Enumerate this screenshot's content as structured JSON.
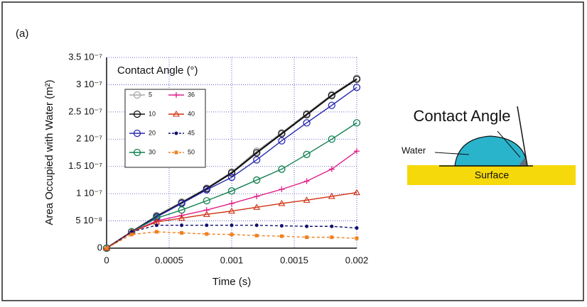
{
  "panel_label": "(a)",
  "diagram": {
    "title": "Contact Angle",
    "water": "Water",
    "surface": "Surface"
  },
  "chart_data": {
    "type": "line",
    "x_label": "Time (s)",
    "y_label": "Area Occupied with Water (m²)",
    "legend_title": "Contact Angle (°)",
    "x": [
      0,
      0.0002,
      0.0004,
      0.0006,
      0.0008,
      0.001,
      0.0012,
      0.0014,
      0.0016,
      0.0018,
      0.002
    ],
    "xlim": [
      0,
      0.002
    ],
    "xticks": [
      0,
      0.0005,
      0.001,
      0.0015,
      0.002
    ],
    "ylim": [
      0,
      3.5e-07
    ],
    "yticks": [
      0,
      {
        "value": 5e-08,
        "label": "5 10⁻⁸"
      },
      {
        "value": 1e-07,
        "label": "1 10⁻⁷"
      },
      {
        "value": 1.5e-07,
        "label": "1.5 10⁻⁷"
      },
      {
        "value": 2e-07,
        "label": "2 10⁻⁷"
      },
      {
        "value": 2.5e-07,
        "label": "2.5 10⁻⁷"
      },
      {
        "value": 3e-07,
        "label": "3 10⁻⁷"
      },
      {
        "value": 3.5e-07,
        "label": "3.5 10⁻⁷"
      }
    ],
    "grid": true,
    "series": [
      {
        "name": "5",
        "color": "#a8a8a8",
        "marker": "open-circle",
        "dashed": false,
        "values": [
          0,
          3e-08,
          6e-08,
          8.5e-08,
          1.1e-07,
          1.4e-07,
          1.78e-07,
          2.12e-07,
          2.47e-07,
          2.82e-07,
          3.12e-07
        ]
      },
      {
        "name": "10",
        "color": "#111111",
        "marker": "open-circle",
        "dashed": false,
        "values": [
          0,
          3e-08,
          5.8e-08,
          8.3e-08,
          1.09e-07,
          1.38e-07,
          1.75e-07,
          2.1e-07,
          2.45e-07,
          2.8e-07,
          3.1e-07
        ]
      },
      {
        "name": "20",
        "color": "#2828b0",
        "marker": "open-circle",
        "dashed": false,
        "values": [
          0,
          3e-08,
          5.7e-08,
          8.2e-08,
          1.07e-07,
          1.3e-07,
          1.62e-07,
          1.97e-07,
          2.3e-07,
          2.62e-07,
          2.95e-07
        ]
      },
      {
        "name": "30",
        "color": "#108050",
        "marker": "open-circle",
        "dashed": false,
        "values": [
          0,
          3e-08,
          5.5e-08,
          7e-08,
          8.7e-08,
          1.05e-07,
          1.25e-07,
          1.45e-07,
          1.72e-07,
          2e-07,
          2.3e-07
        ]
      },
      {
        "name": "36",
        "color": "#e0208a",
        "marker": "plus",
        "dashed": false,
        "values": [
          0,
          3e-08,
          5e-08,
          6e-08,
          7e-08,
          8.2e-08,
          9.5e-08,
          1.08e-07,
          1.23e-07,
          1.45e-07,
          1.78e-07
        ]
      },
      {
        "name": "40",
        "color": "#d03010",
        "marker": "open-triangle",
        "dashed": false,
        "values": [
          0,
          3e-08,
          4.8e-08,
          5.5e-08,
          6.2e-08,
          6.8e-08,
          7.5e-08,
          8.2e-08,
          8.8e-08,
          9.5e-08,
          1.02e-07
        ]
      },
      {
        "name": "45",
        "color": "#101070",
        "marker": "dot",
        "dashed": true,
        "values": [
          0,
          3e-08,
          4.2e-08,
          4.2e-08,
          4.2e-08,
          4.2e-08,
          4.2e-08,
          4.1e-08,
          4e-08,
          4e-08,
          3.7e-08
        ]
      },
      {
        "name": "50",
        "color": "#f08020",
        "marker": "square",
        "dashed": true,
        "values": [
          0,
          2.5e-08,
          3e-08,
          2.8e-08,
          2.6e-08,
          2.5e-08,
          2.3e-08,
          2.2e-08,
          2e-08,
          2e-08,
          1.8e-08
        ]
      }
    ]
  }
}
